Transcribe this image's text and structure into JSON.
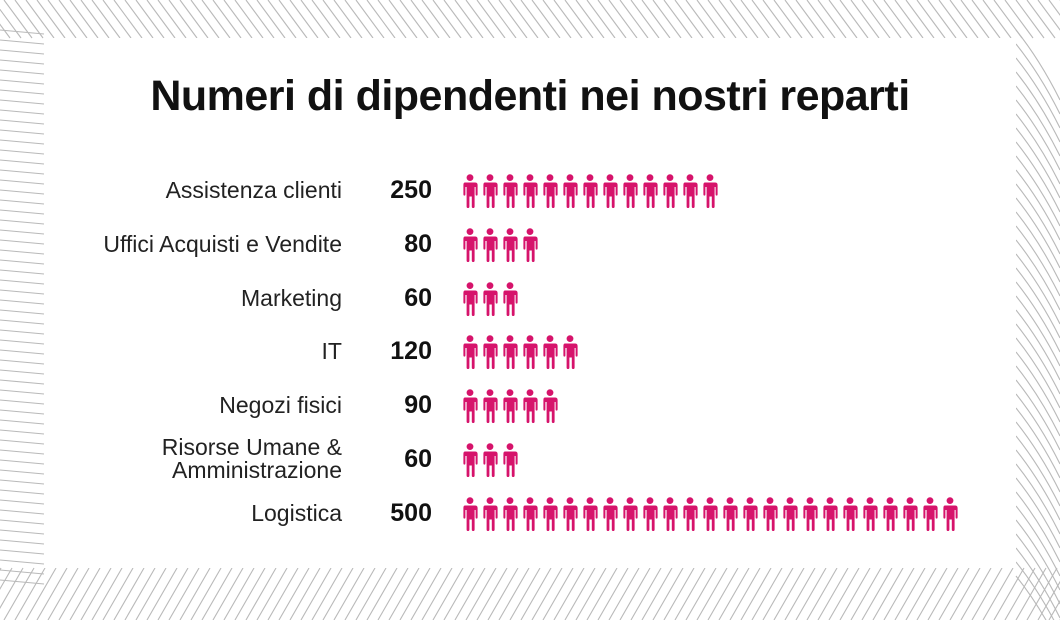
{
  "chart_data": {
    "type": "pictogram",
    "title": "Numeri di dipendenti nei nostri reparti",
    "icon": "person-icon",
    "icon_color": "#d6136b",
    "units_per_icon": 20,
    "categories": [
      "Assistenza clienti",
      "Uffici Acquisti e Vendite",
      "Marketing",
      "IT",
      "Negozi fisici",
      "Risorse Umane & Amministrazione",
      "Logistica"
    ],
    "values": [
      250,
      80,
      60,
      120,
      90,
      60,
      500
    ],
    "value_labels": [
      "250",
      "80",
      "60",
      "120",
      "90",
      "60",
      "500"
    ],
    "icon_counts": [
      13,
      4,
      3,
      6,
      5,
      3,
      25
    ]
  },
  "colors": {
    "accent": "#d6136b",
    "background_lines": "#b9b9b9"
  }
}
